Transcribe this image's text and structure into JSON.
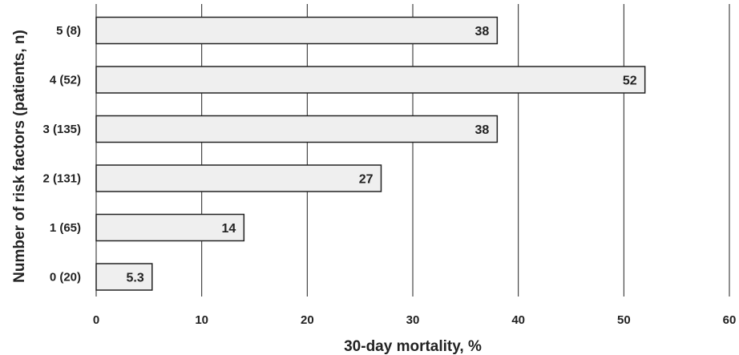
{
  "chart_data": {
    "type": "bar",
    "orientation": "horizontal",
    "categories": [
      "5 (8)",
      "4 (52)",
      "3 (135)",
      "2 (131)",
      "1 (65)",
      "0 (20)"
    ],
    "values": [
      38,
      52,
      38,
      27,
      14,
      5.3
    ],
    "data_labels": [
      "38",
      "52",
      "38",
      "27",
      "14",
      "5.3"
    ],
    "xlabel": "30-day mortality, %",
    "ylabel": "Number of risk factors (patients, n)",
    "xlim": [
      0,
      60
    ],
    "xticks": [
      0,
      10,
      20,
      30,
      40,
      50,
      60
    ],
    "grid": "vertical",
    "colors": {
      "bar_fill": "#efefef",
      "bar_stroke": "#222222",
      "grid": "#222222",
      "text": "#222222"
    }
  }
}
